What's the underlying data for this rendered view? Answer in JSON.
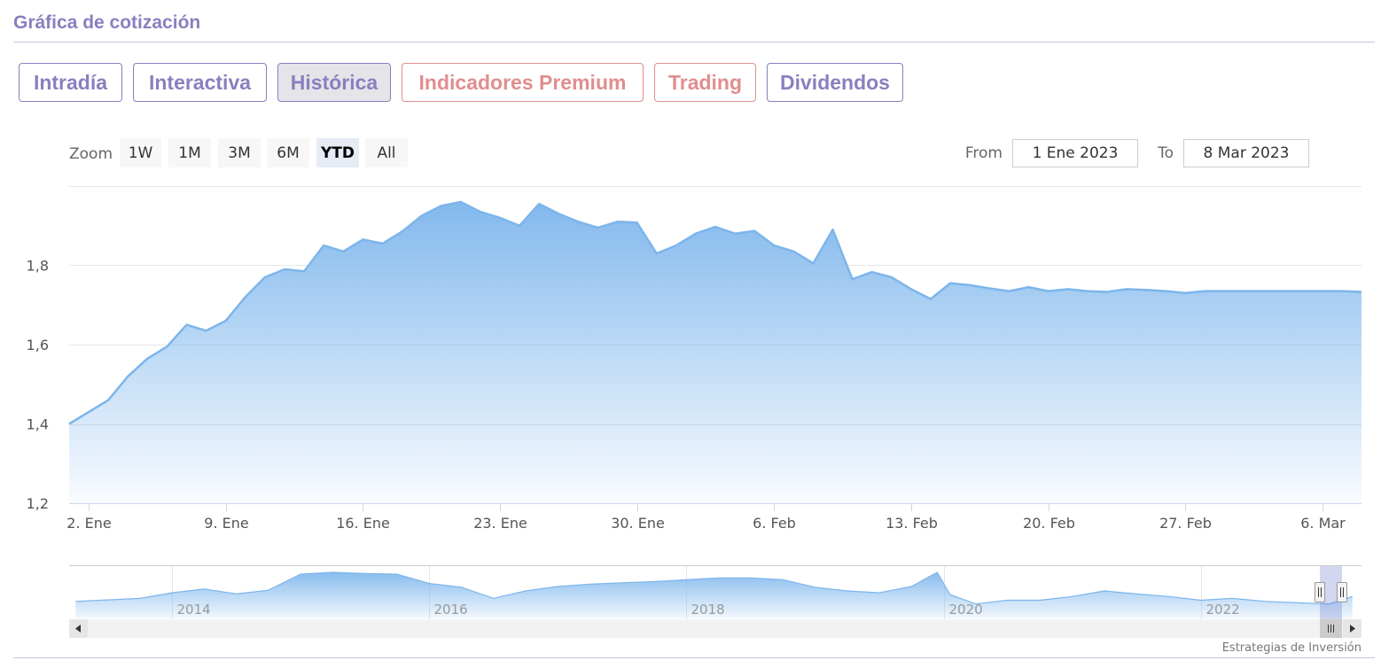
{
  "section_title": "Gráfica de cotización",
  "tabs": [
    {
      "label": "Intradía"
    },
    {
      "label": "Interactiva"
    },
    {
      "label": "Histórica"
    },
    {
      "label": "Indicadores Premium"
    },
    {
      "label": "Trading"
    },
    {
      "label": "Dividendos"
    }
  ],
  "zoom": {
    "label": "Zoom",
    "buttons": [
      "1W",
      "1M",
      "3M",
      "6M",
      "YTD",
      "All"
    ],
    "selected": "YTD"
  },
  "range": {
    "from_label": "From",
    "from_value": "1 Ene 2023",
    "to_label": "To",
    "to_value": "8 Mar 2023"
  },
  "credit": "Estrategias de Inversión",
  "colors": {
    "accent": "#8a7fbf",
    "premium": "#e08e8e",
    "series": "#7cb5ec"
  },
  "chart_data": {
    "type": "area",
    "ylim": [
      1.2,
      2.0
    ],
    "y_ticks": [
      1.2,
      1.4,
      1.6,
      1.8
    ],
    "y_tick_labels": [
      "1,2",
      "1,4",
      "1,6",
      "1,8"
    ],
    "x_start": "2023-01-01",
    "x_end": "2023-03-08",
    "x_ticks": [
      "2023-01-02",
      "2023-01-09",
      "2023-01-16",
      "2023-01-23",
      "2023-01-30",
      "2023-02-06",
      "2023-02-13",
      "2023-02-20",
      "2023-02-27",
      "2023-03-06"
    ],
    "x_tick_labels": [
      "2. Ene",
      "9. Ene",
      "16. Ene",
      "23. Ene",
      "30. Ene",
      "6. Feb",
      "13. Feb",
      "20. Feb",
      "27. Feb",
      "6. Mar"
    ],
    "series": [
      {
        "x": [
          "2023-01-01",
          "2023-01-02",
          "2023-01-03",
          "2023-01-04",
          "2023-01-05",
          "2023-01-06",
          "2023-01-07",
          "2023-01-08",
          "2023-01-09",
          "2023-01-10",
          "2023-01-11",
          "2023-01-12",
          "2023-01-13",
          "2023-01-14",
          "2023-01-15",
          "2023-01-16",
          "2023-01-17",
          "2023-01-18",
          "2023-01-19",
          "2023-01-20",
          "2023-01-21",
          "2023-01-22",
          "2023-01-23",
          "2023-01-24",
          "2023-01-25",
          "2023-01-26",
          "2023-01-27",
          "2023-01-28",
          "2023-01-29",
          "2023-01-30",
          "2023-01-31",
          "2023-02-01",
          "2023-02-02",
          "2023-02-03",
          "2023-02-04",
          "2023-02-05",
          "2023-02-06",
          "2023-02-07",
          "2023-02-08",
          "2023-02-09",
          "2023-02-10",
          "2023-02-11",
          "2023-02-12",
          "2023-02-13",
          "2023-02-14",
          "2023-02-15",
          "2023-02-16",
          "2023-02-17",
          "2023-02-18",
          "2023-02-19",
          "2023-02-20",
          "2023-02-21",
          "2023-02-22",
          "2023-02-23",
          "2023-02-24",
          "2023-02-25",
          "2023-02-26",
          "2023-02-27",
          "2023-02-28",
          "2023-03-01",
          "2023-03-02",
          "2023-03-03",
          "2023-03-04",
          "2023-03-05",
          "2023-03-06",
          "2023-03-07",
          "2023-03-08"
        ],
        "y": [
          1.4,
          1.43,
          1.46,
          1.52,
          1.565,
          1.595,
          1.65,
          1.635,
          1.66,
          1.72,
          1.77,
          1.79,
          1.785,
          1.85,
          1.835,
          1.865,
          1.855,
          1.885,
          1.925,
          1.95,
          1.96,
          1.935,
          1.92,
          1.9,
          1.955,
          1.93,
          1.91,
          1.895,
          1.91,
          1.908,
          1.83,
          1.85,
          1.88,
          1.897,
          1.88,
          1.887,
          1.85,
          1.835,
          1.805,
          1.89,
          1.765,
          1.783,
          1.77,
          1.74,
          1.715,
          1.755,
          1.75,
          1.742,
          1.735,
          1.745,
          1.735,
          1.74,
          1.735,
          1.733,
          1.74,
          1.738,
          1.735,
          1.73,
          1.735,
          1.735,
          1.735,
          1.735,
          1.735,
          1.735,
          1.735,
          1.735,
          1.733
        ]
      }
    ],
    "navigator": {
      "x_tick_labels": [
        "2014",
        "2016",
        "2018",
        "2020",
        "2022"
      ],
      "x_range": [
        2013.2,
        2023.25
      ],
      "series": {
        "x": [
          2013.25,
          2013.5,
          2013.75,
          2014.0,
          2014.25,
          2014.5,
          2014.75,
          2015.0,
          2015.25,
          2015.5,
          2015.75,
          2016.0,
          2016.25,
          2016.5,
          2016.75,
          2017.0,
          2017.25,
          2017.5,
          2017.75,
          2018.0,
          2018.25,
          2018.5,
          2018.75,
          2019.0,
          2019.25,
          2019.5,
          2019.75,
          2019.95,
          2020.05,
          2020.25,
          2020.5,
          2020.75,
          2021.0,
          2021.25,
          2021.5,
          2021.75,
          2022.0,
          2022.25,
          2022.5,
          2022.75,
          2023.0,
          2023.18
        ],
        "y": [
          0.22,
          0.26,
          0.3,
          0.45,
          0.55,
          0.42,
          0.52,
          0.95,
          1.0,
          0.97,
          0.95,
          0.7,
          0.6,
          0.3,
          0.5,
          0.62,
          0.68,
          0.72,
          0.75,
          0.8,
          0.85,
          0.85,
          0.8,
          0.6,
          0.5,
          0.45,
          0.62,
          1.0,
          0.4,
          0.15,
          0.25,
          0.25,
          0.35,
          0.5,
          0.42,
          0.35,
          0.25,
          0.3,
          0.22,
          0.18,
          0.15,
          0.35
        ]
      }
    }
  }
}
